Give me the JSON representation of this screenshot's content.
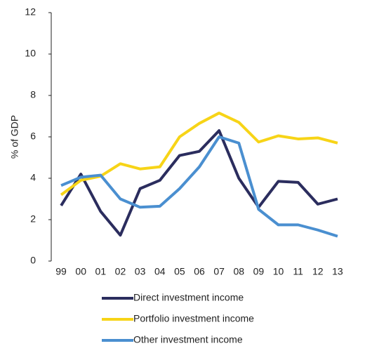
{
  "chart_data": {
    "type": "line",
    "y_label": "% of GDP",
    "categories": [
      "99",
      "00",
      "01",
      "02",
      "03",
      "04",
      "05",
      "06",
      "07",
      "08",
      "09",
      "10",
      "11",
      "12",
      "13"
    ],
    "ylim": [
      0,
      12
    ],
    "yticks": [
      0,
      2,
      4,
      6,
      8,
      10,
      12
    ],
    "grid": false,
    "series": [
      {
        "name": "Direct investment income",
        "color": "#2b2d5e",
        "values": [
          2.68,
          4.2,
          2.4,
          1.25,
          3.5,
          3.9,
          5.1,
          5.3,
          6.3,
          4.0,
          2.6,
          3.85,
          3.8,
          2.75,
          3.0
        ]
      },
      {
        "name": "Portfolio investment income",
        "color": "#f7d417",
        "values": [
          3.2,
          3.9,
          4.1,
          4.7,
          4.45,
          4.55,
          6.0,
          6.65,
          7.15,
          6.7,
          5.75,
          6.05,
          5.9,
          5.95,
          5.7
        ]
      },
      {
        "name": "Other investment income",
        "color": "#4a8fd0",
        "values": [
          3.65,
          4.05,
          4.15,
          3.0,
          2.6,
          2.65,
          3.5,
          4.55,
          6.0,
          5.7,
          2.5,
          1.75,
          1.75,
          1.5,
          1.2
        ]
      }
    ]
  }
}
